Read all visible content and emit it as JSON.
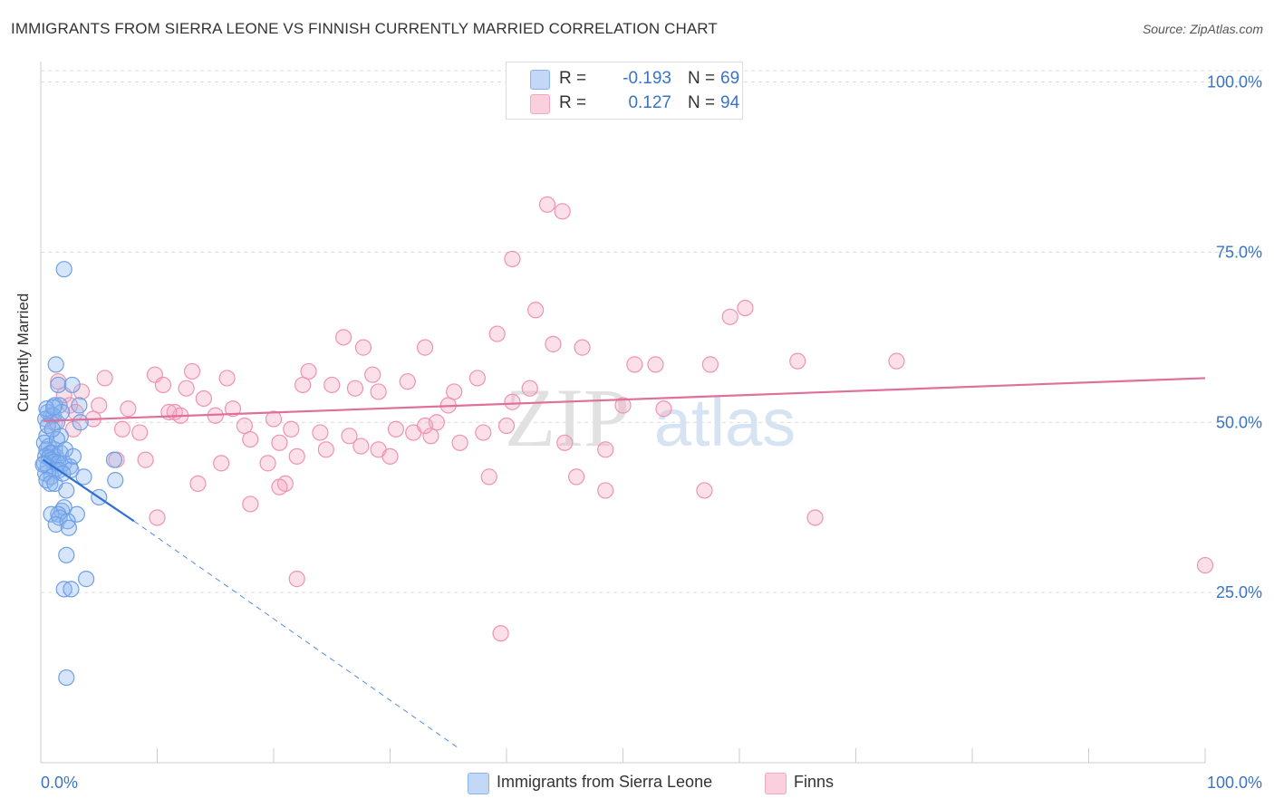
{
  "header": {
    "title": "IMMIGRANTS FROM SIERRA LEONE VS FINNISH CURRENTLY MARRIED CORRELATION CHART",
    "source": "Source: ZipAtlas.com"
  },
  "watermark": {
    "zip": "ZIP",
    "atlas": "atlas"
  },
  "legend_top": [
    {
      "r_label": "R =",
      "r_value": "-0.193",
      "n_label": "N =",
      "n_value": "69",
      "color": "#8ab4ee"
    },
    {
      "r_label": "R =",
      "r_value": "0.127",
      "n_label": "N =",
      "n_value": "94",
      "color": "#f4a7bf"
    }
  ],
  "legend_bottom": [
    {
      "label": "Immigrants from Sierra Leone",
      "color": "#8ab4ee"
    },
    {
      "label": "Finns",
      "color": "#f4a7bf"
    }
  ],
  "chart_data": {
    "type": "scatter",
    "title": "IMMIGRANTS FROM SIERRA LEONE VS FINNISH CURRENTLY MARRIED CORRELATION CHART",
    "ylabel": "Currently Married",
    "xlabel": "",
    "xlim": [
      0,
      100
    ],
    "ylim": [
      0,
      103
    ],
    "x_tick_labels": [
      "0.0%",
      "100.0%"
    ],
    "y_ticks": [
      25,
      50,
      75,
      100
    ],
    "y_tick_labels": [
      "25.0%",
      "50.0%",
      "75.0%",
      "100.0%"
    ],
    "grid": true,
    "legend_position": "top-center",
    "series": [
      {
        "name": "Immigrants from Sierra Leone",
        "color": "#8ab4ee",
        "line_color": "#2f6fd6",
        "trend": {
          "solid": [
            [
              0.2,
              44.5
            ],
            [
              8.0,
              35.5
            ]
          ],
          "dashed": [
            [
              8.0,
              35.5
            ],
            [
              36.0,
              2.0
            ]
          ]
        },
        "points": [
          [
            2.0,
            72.5
          ],
          [
            1.3,
            58.5
          ],
          [
            1.5,
            55.5
          ],
          [
            2.7,
            55.5
          ],
          [
            1.2,
            52.5
          ],
          [
            1.6,
            52.5
          ],
          [
            3.3,
            52.5
          ],
          [
            0.6,
            51.5
          ],
          [
            0.9,
            51.0
          ],
          [
            1.1,
            51.0
          ],
          [
            0.4,
            50.5
          ],
          [
            1.4,
            50.0
          ],
          [
            3.4,
            50.0
          ],
          [
            0.5,
            48.0
          ],
          [
            1.7,
            48.0
          ],
          [
            0.3,
            47.0
          ],
          [
            0.7,
            46.5
          ],
          [
            1.2,
            46.0
          ],
          [
            0.5,
            46.0
          ],
          [
            0.8,
            45.5
          ],
          [
            1.0,
            45.5
          ],
          [
            1.3,
            45.0
          ],
          [
            1.7,
            45.5
          ],
          [
            0.4,
            45.0
          ],
          [
            0.7,
            44.8
          ],
          [
            0.9,
            44.5
          ],
          [
            1.1,
            44.2
          ],
          [
            1.5,
            44.0
          ],
          [
            2.0,
            44.0
          ],
          [
            2.5,
            43.5
          ],
          [
            0.6,
            43.5
          ],
          [
            1.2,
            43.0
          ],
          [
            1.6,
            43.0
          ],
          [
            2.6,
            43.0
          ],
          [
            0.4,
            42.5
          ],
          [
            0.9,
            42.0
          ],
          [
            3.7,
            42.0
          ],
          [
            0.5,
            41.5
          ],
          [
            0.8,
            41.0
          ],
          [
            1.2,
            41.0
          ],
          [
            6.3,
            44.5
          ],
          [
            6.4,
            41.5
          ],
          [
            5.0,
            39.0
          ],
          [
            2.2,
            40.0
          ],
          [
            1.8,
            37.0
          ],
          [
            2.0,
            37.5
          ],
          [
            1.5,
            36.5
          ],
          [
            0.9,
            36.5
          ],
          [
            1.6,
            36.0
          ],
          [
            3.1,
            36.5
          ],
          [
            1.3,
            35.0
          ],
          [
            2.3,
            35.5
          ],
          [
            2.4,
            34.5
          ],
          [
            2.2,
            30.5
          ],
          [
            3.9,
            27.0
          ],
          [
            2.0,
            25.5
          ],
          [
            2.6,
            25.5
          ],
          [
            2.2,
            12.5
          ],
          [
            0.6,
            49.5
          ],
          [
            1.4,
            47.5
          ],
          [
            0.3,
            44.0
          ],
          [
            2.1,
            46.0
          ],
          [
            1.8,
            51.5
          ],
          [
            0.5,
            52.0
          ],
          [
            1.0,
            49.0
          ],
          [
            2.8,
            45.0
          ],
          [
            0.2,
            43.8
          ],
          [
            1.9,
            42.5
          ],
          [
            1.1,
            52.2
          ]
        ]
      },
      {
        "name": "Finns",
        "color": "#f4a7bf",
        "line_color": "#e06f9a",
        "trend": {
          "solid": [
            [
              0.2,
              50.2
            ],
            [
              100.0,
              56.5
            ]
          ]
        },
        "points": [
          [
            43.5,
            82.0
          ],
          [
            44.8,
            81.0
          ],
          [
            40.5,
            74.0
          ],
          [
            42.5,
            66.5
          ],
          [
            59.2,
            65.5
          ],
          [
            60.5,
            66.8
          ],
          [
            39.2,
            63.0
          ],
          [
            26.0,
            62.5
          ],
          [
            44.0,
            61.5
          ],
          [
            27.7,
            61.0
          ],
          [
            33.0,
            61.0
          ],
          [
            46.5,
            61.0
          ],
          [
            57.5,
            58.5
          ],
          [
            65.0,
            59.0
          ],
          [
            73.5,
            59.0
          ],
          [
            51.0,
            58.5
          ],
          [
            52.8,
            58.5
          ],
          [
            23.0,
            57.5
          ],
          [
            28.5,
            57.0
          ],
          [
            13.0,
            57.5
          ],
          [
            16.0,
            56.5
          ],
          [
            9.8,
            57.0
          ],
          [
            5.5,
            56.5
          ],
          [
            10.5,
            55.5
          ],
          [
            25.0,
            55.5
          ],
          [
            27.0,
            55.0
          ],
          [
            22.5,
            55.5
          ],
          [
            29.0,
            54.5
          ],
          [
            35.5,
            54.5
          ],
          [
            31.5,
            56.0
          ],
          [
            37.5,
            56.5
          ],
          [
            40.5,
            53.0
          ],
          [
            50.0,
            52.5
          ],
          [
            53.5,
            52.0
          ],
          [
            12.5,
            55.0
          ],
          [
            14.0,
            53.5
          ],
          [
            3.5,
            54.5
          ],
          [
            5.0,
            52.5
          ],
          [
            7.5,
            52.0
          ],
          [
            11.5,
            51.5
          ],
          [
            15.0,
            51.0
          ],
          [
            16.5,
            52.0
          ],
          [
            12.0,
            51.0
          ],
          [
            4.5,
            50.5
          ],
          [
            7.0,
            49.0
          ],
          [
            8.5,
            48.5
          ],
          [
            17.5,
            49.5
          ],
          [
            20.0,
            50.5
          ],
          [
            21.5,
            49.0
          ],
          [
            24.0,
            48.5
          ],
          [
            26.5,
            48.0
          ],
          [
            30.5,
            49.0
          ],
          [
            32.0,
            48.5
          ],
          [
            33.5,
            48.0
          ],
          [
            38.0,
            48.5
          ],
          [
            36.0,
            47.0
          ],
          [
            27.5,
            46.5
          ],
          [
            29.0,
            46.0
          ],
          [
            40.0,
            49.5
          ],
          [
            45.0,
            47.0
          ],
          [
            18.0,
            47.5
          ],
          [
            20.5,
            47.0
          ],
          [
            24.5,
            46.0
          ],
          [
            30.0,
            45.0
          ],
          [
            11.0,
            51.5
          ],
          [
            6.5,
            44.5
          ],
          [
            9.0,
            44.5
          ],
          [
            15.5,
            44.0
          ],
          [
            19.5,
            44.0
          ],
          [
            22.0,
            45.0
          ],
          [
            48.5,
            46.0
          ],
          [
            38.5,
            42.0
          ],
          [
            46.0,
            42.0
          ],
          [
            13.5,
            41.0
          ],
          [
            21.0,
            41.0
          ],
          [
            20.5,
            40.5
          ],
          [
            48.5,
            40.0
          ],
          [
            57.0,
            40.0
          ],
          [
            18.0,
            38.0
          ],
          [
            10.0,
            36.0
          ],
          [
            66.5,
            36.0
          ],
          [
            1.5,
            56.0
          ],
          [
            2.0,
            54.0
          ],
          [
            2.5,
            52.5
          ],
          [
            3.0,
            51.5
          ],
          [
            1.2,
            50.0
          ],
          [
            2.8,
            49.0
          ],
          [
            22.0,
            27.0
          ],
          [
            39.5,
            19.0
          ],
          [
            100.0,
            29.0
          ],
          [
            35.0,
            52.5
          ],
          [
            42.0,
            55.0
          ],
          [
            34.0,
            50.0
          ],
          [
            33.0,
            49.5
          ]
        ]
      }
    ]
  }
}
